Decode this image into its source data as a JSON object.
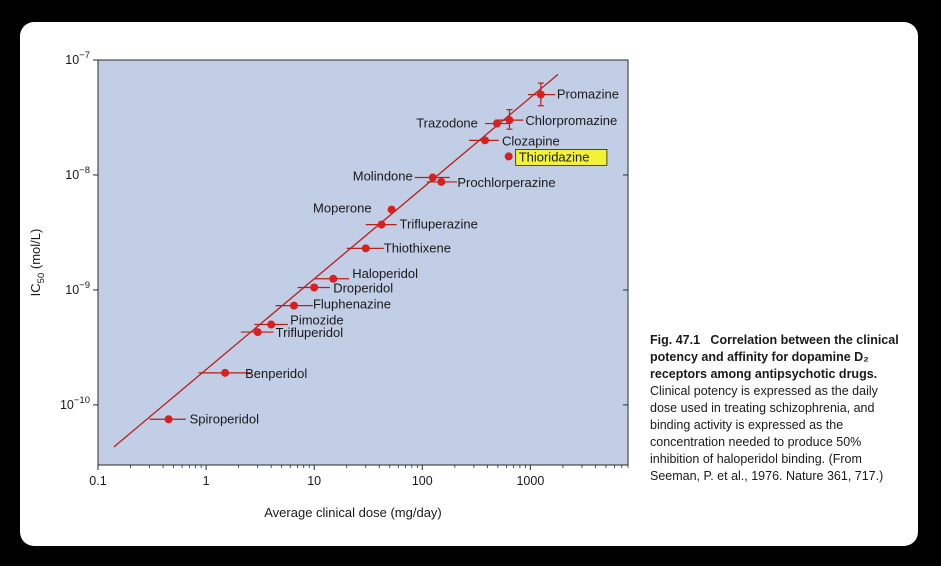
{
  "chart_data": {
    "type": "scatter",
    "x_scale": "log",
    "y_scale": "log",
    "xlabel": "Average clinical dose (mg/day)",
    "ylabel_main": "IC",
    "ylabel_sub": "50",
    "ylabel_unit": " (mol/L)",
    "xlim": [
      0.1,
      8000
    ],
    "ylim": [
      3e-11,
      1e-07
    ],
    "x_ticks": [
      {
        "value": 0.1,
        "label": "0.1"
      },
      {
        "value": 1,
        "label": "1"
      },
      {
        "value": 10,
        "label": "10"
      },
      {
        "value": 100,
        "label": "100"
      },
      {
        "value": 1000,
        "label": "1000"
      }
    ],
    "y_ticks": [
      {
        "value": 1e-07,
        "base": "10",
        "exp": "−7"
      },
      {
        "value": 1e-08,
        "base": "10",
        "exp": "−8"
      },
      {
        "value": 1e-09,
        "base": "10",
        "exp": "−9"
      },
      {
        "value": 1e-10,
        "base": "10",
        "exp": "−10"
      }
    ],
    "regression_line": {
      "x": [
        0.14,
        1800
      ],
      "y": [
        4.3e-11,
        7.5e-08
      ],
      "color": "#b5201a"
    },
    "plot_background": "#c2cde6",
    "point_color": "#d8201e",
    "highlight_color": "#f3f23a",
    "points": [
      {
        "name": "Spiroperidol",
        "x": 0.45,
        "y": 7.5e-11,
        "x_err": [
          0.3,
          0.65
        ]
      },
      {
        "name": "Benperidol",
        "x": 1.5,
        "y": 1.9e-10,
        "x_err": [
          0.85,
          2.6
        ]
      },
      {
        "name": "Trifluperidol",
        "x": 3.0,
        "y": 4.3e-10,
        "x_err": [
          2.1,
          4.2
        ]
      },
      {
        "name": "Pimozide",
        "x": 4.0,
        "y": 5e-10,
        "x_err": [
          2.8,
          5.7
        ]
      },
      {
        "name": "Fluphenazine",
        "x": 6.5,
        "y": 7.3e-10,
        "x_err": [
          4.4,
          9.7
        ]
      },
      {
        "name": "Droperidol",
        "x": 10,
        "y": 1.05e-09,
        "x_err": [
          7,
          14
        ]
      },
      {
        "name": "Haloperidol",
        "x": 15,
        "y": 1.25e-09,
        "x_err": [
          10,
          21
        ]
      },
      {
        "name": "Thiothixene",
        "x": 30,
        "y": 2.3e-09,
        "x_err": [
          20,
          44
        ]
      },
      {
        "name": "Trifluperazine",
        "x": 42,
        "y": 3.7e-09,
        "x_err": [
          30,
          58
        ]
      },
      {
        "name": "Moperone",
        "x": 52,
        "y": 5e-09
      },
      {
        "name": "Molindone",
        "x": 125,
        "y": 9.5e-09,
        "x_err": [
          85,
          180
        ]
      },
      {
        "name": "Prochlorperazine",
        "x": 150,
        "y": 8.7e-09,
        "x_err": [
          110,
          210
        ]
      },
      {
        "name": "Clozapine",
        "x": 380,
        "y": 2e-08,
        "x_err": [
          270,
          510
        ]
      },
      {
        "name": "Thioridazine",
        "x": 630,
        "y": 1.45e-08,
        "highlight": true
      },
      {
        "name": "Trazodone",
        "x": 490,
        "y": 2.8e-08,
        "x_err": [
          380,
          640
        ]
      },
      {
        "name": "Chlorpromazine",
        "x": 640,
        "y": 3e-08,
        "x_err": [
          470,
          860
        ],
        "y_err": [
          2.5e-08,
          3.7e-08
        ]
      },
      {
        "name": "Promazine",
        "x": 1250,
        "y": 5e-08,
        "x_err": [
          950,
          1700
        ],
        "y_err": [
          4e-08,
          6.3e-08
        ]
      }
    ]
  },
  "caption": {
    "bold_text": "Fig. 47.1   Correlation between the clinical potency and affinity for dopamine D₂ receptors among antipsychotic drugs.",
    "body_text": " Clinical potency is expressed as the daily dose used in treating schizophrenia, and binding activity is expressed as the concentration needed to produce 50% inhibition of haloperidol binding. (From Seeman, P. et al., 1976. Nature 361, 717.)"
  }
}
